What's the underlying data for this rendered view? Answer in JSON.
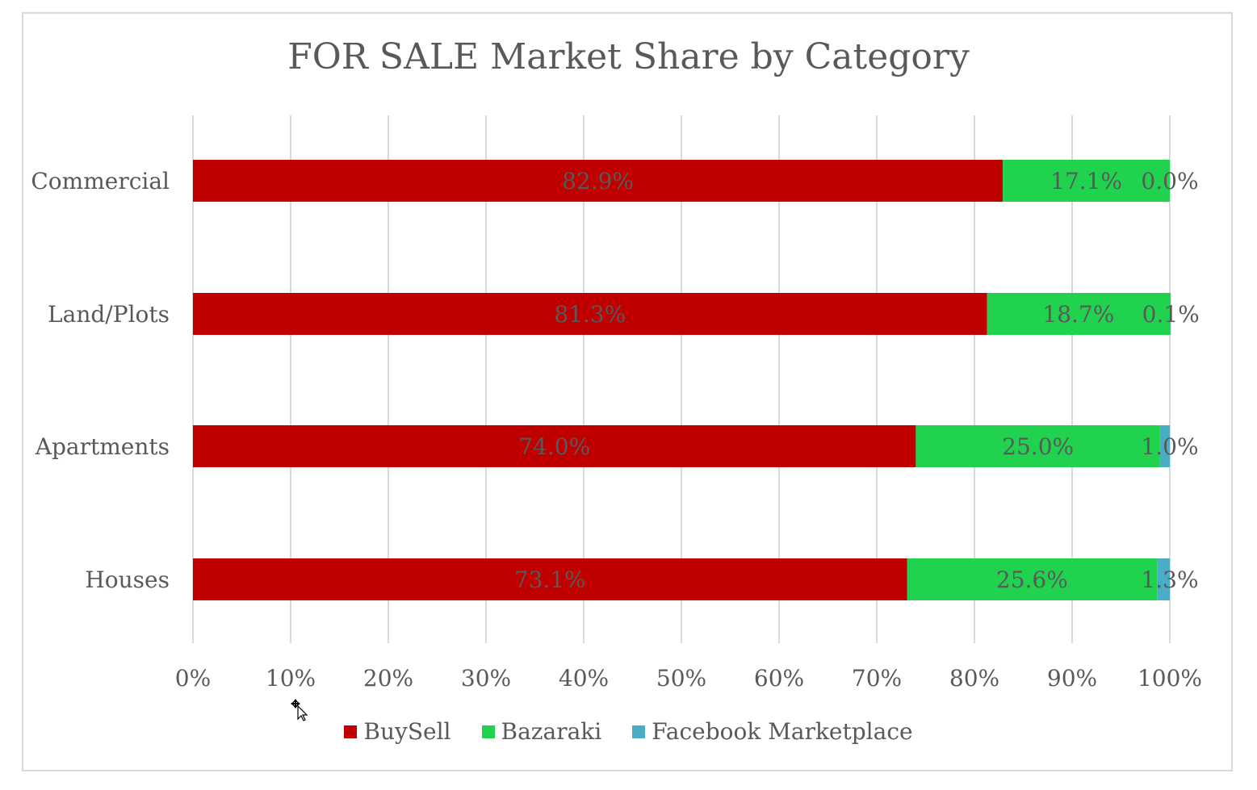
{
  "chart_data": {
    "type": "bar",
    "orientation": "horizontal",
    "stacked": "percent",
    "title": "FOR SALE Market Share by Category",
    "categories": [
      "Commercial",
      "Land/Plots",
      "Apartments",
      "Houses"
    ],
    "series": [
      {
        "name": "BuySell",
        "color": "#c00000",
        "values": [
          82.9,
          81.3,
          74.0,
          73.1
        ],
        "labels": [
          "82.9%",
          "81.3%",
          "74.0%",
          "73.1%"
        ]
      },
      {
        "name": "Bazaraki",
        "color": "#21d24f",
        "values": [
          17.1,
          18.7,
          25.0,
          25.6
        ],
        "labels": [
          "17.1%",
          "18.7%",
          "25.0%",
          "25.6%"
        ]
      },
      {
        "name": "Facebook Marketplace",
        "color": "#4bacc6",
        "values": [
          0.0,
          0.1,
          1.0,
          1.3
        ],
        "labels": [
          "0.0%",
          "0.1%",
          "1.0%",
          "1.3%"
        ]
      }
    ],
    "xlim": [
      0,
      100
    ],
    "xticks": [
      "0%",
      "10%",
      "20%",
      "30%",
      "40%",
      "50%",
      "60%",
      "70%",
      "80%",
      "90%",
      "100%"
    ],
    "grid": true,
    "legend": "bottom"
  },
  "legend_items": [
    "BuySell",
    "Bazaraki",
    "Facebook Marketplace"
  ],
  "label_color": "#595959"
}
